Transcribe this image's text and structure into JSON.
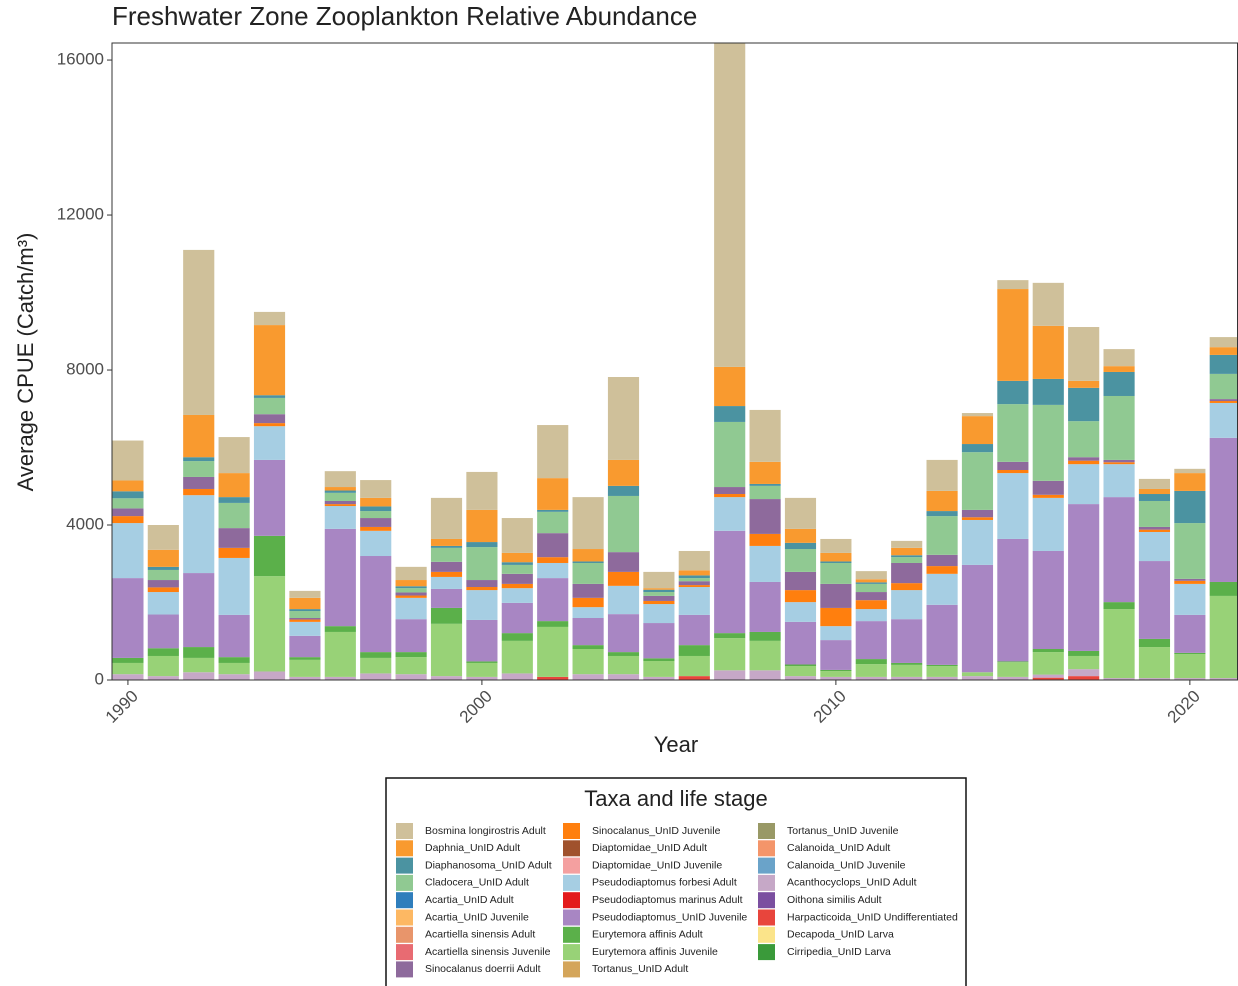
{
  "chart_data": {
    "type": "stacked-bar",
    "title": "Freshwater Zone Zooplankton Relative Abundance",
    "x_label": "Year",
    "y_label": "Average CPUE (Catch/m³)",
    "legend_title": "Taxa and life stage",
    "x": [
      1990,
      1991,
      1992,
      1993,
      1994,
      1995,
      1996,
      1997,
      1998,
      1999,
      2000,
      2001,
      2002,
      2003,
      2004,
      2005,
      2006,
      2007,
      2008,
      2009,
      2010,
      2011,
      2012,
      2013,
      2014,
      2015,
      2016,
      2017,
      2018,
      2019,
      2020,
      2021
    ],
    "xlim": [
      1989.55,
      2021.36
    ],
    "xticks": [
      1990,
      2000,
      2010,
      2020
    ],
    "ylim": [
      0,
      16440
    ],
    "yticks": [
      0,
      4000,
      8000,
      12000,
      16000
    ],
    "grid": false,
    "series": [
      {
        "name": "Bosmina longirostris Adult",
        "color": "#cfc09a",
        "values": [
          1030,
          640,
          4260,
          930,
          340,
          180,
          410,
          460,
          340,
          1060,
          980,
          900,
          1370,
          1340,
          2140,
          420,
          500,
          8920,
          1340,
          800,
          360,
          210,
          180,
          800,
          80,
          230,
          1110,
          1390,
          440,
          260,
          110,
          260
        ]
      },
      {
        "name": "Daphnia_UnID Adult",
        "color": "#f99a2f",
        "values": [
          280,
          440,
          1090,
          620,
          1810,
          290,
          90,
          220,
          160,
          180,
          830,
          240,
          820,
          320,
          670,
          40,
          130,
          1010,
          570,
          360,
          220,
          80,
          190,
          520,
          720,
          2370,
          1370,
          180,
          150,
          130,
          460,
          200
        ]
      },
      {
        "name": "Diaphanosoma_UnID Adult",
        "color": "#4b93a1",
        "values": [
          180,
          80,
          100,
          150,
          70,
          50,
          60,
          120,
          50,
          50,
          130,
          70,
          50,
          40,
          260,
          60,
          70,
          410,
          50,
          160,
          40,
          40,
          50,
          130,
          210,
          600,
          670,
          860,
          620,
          180,
          830,
          490
        ]
      },
      {
        "name": "Cladocera_UnID Adult",
        "color": "#90c992",
        "values": [
          260,
          260,
          410,
          650,
          420,
          180,
          210,
          180,
          110,
          360,
          850,
          230,
          550,
          540,
          1450,
          100,
          80,
          1680,
          340,
          590,
          540,
          210,
          150,
          1000,
          1490,
          1490,
          1960,
          930,
          1650,
          670,
          1440,
          650
        ]
      },
      {
        "name": "Acartia_UnID Adult",
        "color": "#2f7ebc",
        "values": [
          0,
          0,
          0,
          0,
          0,
          0,
          0,
          0,
          0,
          0,
          0,
          0,
          0,
          0,
          0,
          0,
          0,
          0,
          0,
          0,
          0,
          0,
          0,
          0,
          0,
          0,
          0,
          0,
          0,
          0,
          0,
          0
        ]
      },
      {
        "name": "Acartia_UnID Juvenile",
        "color": "#fdb863",
        "values": [
          0,
          0,
          0,
          0,
          0,
          0,
          0,
          0,
          0,
          0,
          0,
          0,
          0,
          0,
          0,
          0,
          0,
          0,
          0,
          0,
          0,
          0,
          0,
          0,
          0,
          0,
          0,
          0,
          0,
          0,
          0,
          0
        ]
      },
      {
        "name": "Acartiella sinensis Adult",
        "color": "#e8956b",
        "values": [
          0,
          0,
          0,
          0,
          0,
          0,
          0,
          0,
          0,
          0,
          0,
          0,
          0,
          0,
          0,
          0,
          0,
          0,
          0,
          0,
          0,
          0,
          0,
          0,
          0,
          0,
          0,
          0,
          0,
          0,
          0,
          0
        ]
      },
      {
        "name": "Acartiella sinensis Juvenile",
        "color": "#e86b72",
        "values": [
          0,
          0,
          0,
          0,
          0,
          0,
          0,
          0,
          0,
          0,
          0,
          0,
          0,
          0,
          0,
          0,
          0,
          0,
          0,
          0,
          0,
          0,
          0,
          0,
          0,
          0,
          0,
          0,
          0,
          0,
          0,
          0
        ]
      },
      {
        "name": "Sinocalanus doerrii Adult",
        "color": "#8e6a9c",
        "values": [
          200,
          190,
          310,
          510,
          230,
          40,
          80,
          230,
          80,
          260,
          180,
          260,
          620,
          360,
          510,
          130,
          100,
          180,
          900,
          470,
          620,
          210,
          520,
          290,
          190,
          210,
          360,
          90,
          60,
          70,
          50,
          50
        ]
      },
      {
        "name": "Sinocalanus_UnID Juvenile",
        "color": "#ff7f0e",
        "values": [
          180,
          120,
          160,
          260,
          80,
          60,
          50,
          100,
          60,
          130,
          80,
          110,
          150,
          240,
          360,
          80,
          50,
          80,
          310,
          310,
          470,
          230,
          180,
          200,
          70,
          80,
          80,
          90,
          50,
          60,
          80,
          50
        ]
      },
      {
        "name": "Diaptomidae_UnID Adult",
        "color": "#a0522d",
        "values": [
          0,
          0,
          0,
          0,
          0,
          0,
          0,
          0,
          0,
          0,
          0,
          0,
          0,
          0,
          0,
          0,
          0,
          0,
          0,
          0,
          0,
          0,
          0,
          0,
          0,
          0,
          0,
          0,
          0,
          0,
          0,
          0
        ]
      },
      {
        "name": "Diaptomidae_UnID Juvenile",
        "color": "#f4a0a0",
        "values": [
          0,
          0,
          0,
          0,
          0,
          0,
          0,
          0,
          0,
          0,
          0,
          0,
          0,
          0,
          0,
          0,
          0,
          0,
          0,
          0,
          0,
          0,
          0,
          0,
          0,
          0,
          0,
          0,
          0,
          0,
          0,
          0
        ]
      },
      {
        "name": "Pseudodiaptomus forbesi Adult",
        "color": "#a6cee3",
        "values": [
          1420,
          580,
          2010,
          1470,
          870,
          360,
          590,
          650,
          550,
          310,
          770,
          380,
          390,
          280,
          730,
          490,
          720,
          870,
          930,
          510,
          360,
          310,
          750,
          800,
          1160,
          1700,
          1370,
          1030,
          850,
          750,
          800,
          900
        ]
      },
      {
        "name": "Pseudodiaptomus marinus Adult",
        "color": "#e31a1c",
        "values": [
          0,
          0,
          0,
          0,
          0,
          0,
          0,
          0,
          0,
          0,
          0,
          0,
          0,
          0,
          0,
          0,
          0,
          0,
          0,
          0,
          0,
          0,
          0,
          0,
          0,
          0,
          0,
          0,
          0,
          0,
          0,
          0
        ]
      },
      {
        "name": "Pseudodiaptomus_UnID Juvenile",
        "color": "#a886c3",
        "values": [
          2060,
          870,
          1910,
          1090,
          1960,
          550,
          2510,
          2480,
          850,
          490,
          1070,
          780,
          1110,
          700,
          980,
          910,
          780,
          2640,
          1290,
          1100,
          770,
          980,
          1130,
          1550,
          2770,
          3160,
          2530,
          3790,
          2710,
          2010,
          980,
          3720
        ]
      },
      {
        "name": "Eurytemora affinis Adult",
        "color": "#5bb04a",
        "values": [
          130,
          200,
          280,
          150,
          1040,
          70,
          150,
          150,
          130,
          410,
          40,
          200,
          150,
          100,
          100,
          70,
          280,
          130,
          230,
          40,
          30,
          130,
          50,
          30,
          0,
          20,
          80,
          130,
          180,
          210,
          30,
          360
        ]
      },
      {
        "name": "Eurytemora affinis Juvenile",
        "color": "#98d277",
        "values": [
          290,
          520,
          370,
          290,
          2460,
          440,
          1160,
          400,
          440,
          1350,
          360,
          840,
          1290,
          650,
          470,
          410,
          520,
          830,
          760,
          260,
          150,
          330,
          310,
          280,
          100,
          380,
          580,
          340,
          1780,
          800,
          620,
          2120
        ]
      },
      {
        "name": "Tortanus_UnID Adult",
        "color": "#d4a55a",
        "values": [
          0,
          0,
          0,
          0,
          0,
          0,
          0,
          0,
          0,
          0,
          0,
          0,
          0,
          0,
          0,
          0,
          0,
          0,
          0,
          0,
          0,
          0,
          0,
          0,
          0,
          0,
          0,
          0,
          0,
          0,
          0,
          0
        ]
      },
      {
        "name": "Tortanus_UnID Juvenile",
        "color": "#999966",
        "values": [
          0,
          0,
          0,
          0,
          0,
          0,
          0,
          0,
          0,
          0,
          0,
          0,
          0,
          0,
          0,
          0,
          0,
          0,
          0,
          0,
          0,
          0,
          0,
          0,
          0,
          0,
          0,
          0,
          0,
          0,
          0,
          0
        ]
      },
      {
        "name": "Calanoida_UnID Adult",
        "color": "#f4956a",
        "values": [
          0,
          0,
          0,
          0,
          0,
          0,
          0,
          0,
          0,
          0,
          0,
          0,
          0,
          0,
          0,
          0,
          0,
          0,
          0,
          0,
          0,
          0,
          0,
          0,
          0,
          0,
          0,
          0,
          0,
          0,
          0,
          0
        ]
      },
      {
        "name": "Calanoida_UnID Juvenile",
        "color": "#6aa3c9",
        "values": [
          0,
          0,
          0,
          0,
          0,
          0,
          0,
          0,
          0,
          0,
          0,
          0,
          0,
          0,
          0,
          0,
          0,
          0,
          0,
          0,
          0,
          0,
          0,
          0,
          0,
          0,
          0,
          0,
          0,
          0,
          0,
          0
        ]
      },
      {
        "name": "Acanthocyclops_UnID Adult",
        "color": "#c6a8c7",
        "values": [
          150,
          100,
          200,
          150,
          220,
          80,
          80,
          170,
          150,
          100,
          80,
          170,
          0,
          150,
          150,
          80,
          0,
          250,
          250,
          100,
          80,
          80,
          80,
          80,
          100,
          80,
          80,
          180,
          50,
          50,
          50,
          50
        ]
      },
      {
        "name": "Oithona similis Adult",
        "color": "#7b4fa0",
        "values": [
          0,
          0,
          0,
          0,
          0,
          0,
          0,
          0,
          0,
          0,
          0,
          0,
          0,
          0,
          0,
          0,
          0,
          0,
          0,
          0,
          0,
          0,
          0,
          0,
          0,
          0,
          0,
          0,
          0,
          0,
          0,
          0
        ]
      },
      {
        "name": "Harpacticoida_UnID Undifferentiated",
        "color": "#e8453c",
        "values": [
          0,
          0,
          0,
          0,
          0,
          0,
          0,
          0,
          0,
          0,
          0,
          0,
          80,
          0,
          0,
          0,
          100,
          0,
          0,
          0,
          0,
          0,
          0,
          0,
          0,
          0,
          60,
          100,
          0,
          0,
          0,
          0
        ]
      },
      {
        "name": "Decapoda_UnID Larva",
        "color": "#fbe48a",
        "values": [
          0,
          0,
          0,
          0,
          0,
          0,
          0,
          0,
          0,
          0,
          0,
          0,
          0,
          0,
          0,
          0,
          0,
          0,
          0,
          0,
          0,
          0,
          0,
          0,
          0,
          0,
          0,
          0,
          0,
          0,
          0,
          0
        ]
      },
      {
        "name": "Cirripedia_UnID Larva",
        "color": "#3a9a3a",
        "values": [
          0,
          0,
          0,
          0,
          0,
          0,
          0,
          0,
          0,
          0,
          0,
          0,
          0,
          0,
          0,
          0,
          0,
          0,
          0,
          0,
          0,
          0,
          0,
          0,
          0,
          0,
          0,
          0,
          0,
          0,
          0,
          0
        ]
      }
    ]
  }
}
